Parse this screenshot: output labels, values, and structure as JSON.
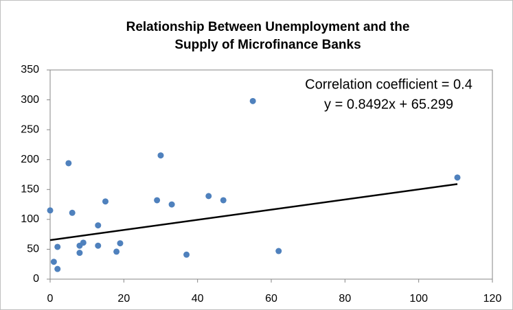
{
  "chart_data": {
    "type": "scatter",
    "title": [
      "Relationship Between Unemployment and the",
      "Supply of Microfinance Banks"
    ],
    "annotations": [
      "Correlation coefficient = 0.4"
    ],
    "series": [
      {
        "color": "#4f81bd",
        "x": [
          0,
          1,
          2,
          2,
          5,
          6,
          8,
          8,
          9,
          13,
          13,
          15,
          18,
          19,
          29,
          30,
          33,
          37,
          43,
          47,
          55,
          62,
          110.5
        ],
        "values": [
          115,
          29,
          54,
          17,
          194,
          111,
          56,
          44,
          61,
          90,
          56,
          130,
          46,
          60,
          132,
          207,
          125,
          41,
          139,
          132,
          298,
          47,
          170
        ]
      }
    ],
    "trendline": {
      "slope": 0.8492,
      "intercept": 65.299,
      "label": "y = 0.8492x + 65.299",
      "color": "#000000"
    },
    "xlim": [
      0,
      120
    ],
    "xticks": [
      0,
      20,
      40,
      60,
      80,
      100,
      120
    ],
    "ylim": [
      0,
      350
    ],
    "yticks": [
      0,
      50,
      100,
      150,
      200,
      250,
      300,
      350
    ],
    "grid": false
  }
}
